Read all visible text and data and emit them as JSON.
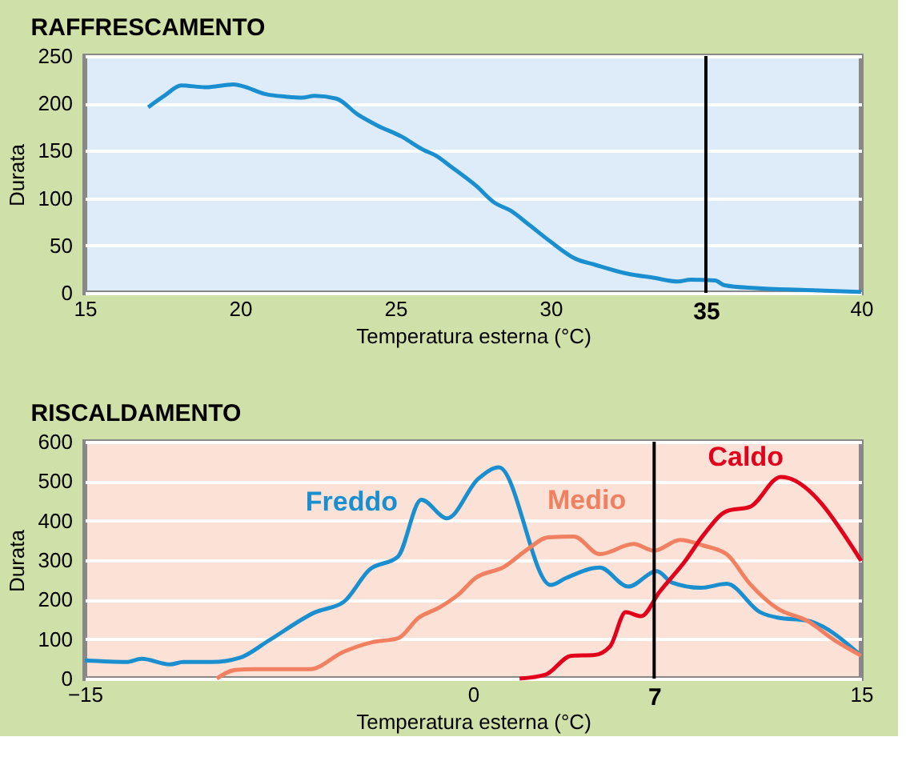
{
  "chart_data": [
    {
      "type": "line",
      "title": "RAFFRESCAMENTO",
      "xlabel": "Temperatura esterna (°C)",
      "ylabel": "Durata",
      "xlim": [
        15,
        40
      ],
      "xticks": [
        15,
        20,
        25,
        30,
        35,
        40
      ],
      "ylim": [
        0,
        250
      ],
      "yticks": [
        0,
        50,
        100,
        150,
        200,
        250
      ],
      "grid": "y",
      "legend": false,
      "ref_lines": [
        {
          "axis": "x",
          "value": 35,
          "color": "#000000"
        }
      ],
      "series": [
        {
          "color": "#1a8fd0",
          "x": [
            17.04,
            17.6,
            18.1,
            18.9,
            19.8,
            20.1,
            20.8,
            21.5,
            22.0,
            22.4,
            23.1,
            23.8,
            24.4,
            25.2,
            25.9,
            26.3,
            26.8,
            27.6,
            28.2,
            28.7,
            29.3,
            30.0,
            30.8,
            31.4,
            32.5,
            33.3,
            34.1,
            34.5,
            35.3,
            35.6,
            36.6,
            38.2,
            40
          ],
          "values": [
            196,
            209,
            219,
            217,
            220,
            218,
            210,
            207,
            206,
            208,
            205,
            188,
            177,
            165,
            151,
            145,
            133,
            113,
            95,
            87,
            72,
            54,
            36,
            30,
            20,
            16,
            12,
            14,
            13,
            8,
            5,
            3,
            1
          ]
        }
      ]
    },
    {
      "type": "line",
      "title": "RISCALDAMENTO",
      "xlabel": "Temperatura esterna (°C)",
      "ylabel": "Durata",
      "xlim": [
        -15,
        15
      ],
      "xticks": [
        -15,
        0,
        7,
        15
      ],
      "ylim": [
        0,
        600
      ],
      "yticks": [
        0,
        100,
        200,
        300,
        400,
        500,
        600
      ],
      "grid": "y",
      "legend": false,
      "ref_lines": [
        {
          "axis": "x",
          "value": 7,
          "color": "#000000"
        }
      ],
      "series": [
        {
          "name": "Freddo",
          "color": "#1a8fd0",
          "x": [
            -15,
            -13.4,
            -12.8,
            -11.7,
            -11.2,
            -10.1,
            -9.0,
            -7.9,
            -6.1,
            -5.0,
            -4.0,
            -2.9,
            -2.0,
            -1.0,
            0.2,
            1.0,
            3.0,
            3.6,
            4.9,
            6.0,
            7.1,
            7.7,
            8.8,
            9.8,
            11.1,
            11.8,
            12.9,
            15
          ],
          "values": [
            46,
            42,
            50,
            36,
            42,
            42,
            53,
            96,
            168,
            194,
            276,
            309,
            453,
            406,
            506,
            535,
            237,
            255,
            281,
            233,
            272,
            243,
            230,
            240,
            168,
            154,
            147,
            58
          ]
        },
        {
          "name": "Medio",
          "color": "#f08060",
          "x": [
            -9.9,
            -9.2,
            -8.5,
            -6.3,
            -5.0,
            -3.9,
            -2.9,
            -2.1,
            -1.3,
            -0.6,
            0.1,
            1.2,
            2.1,
            2.9,
            3.9,
            4.9,
            6.2,
            7.0,
            8.0,
            8.9,
            9.8,
            10.7,
            11.8,
            12.9,
            14.0,
            15
          ],
          "values": [
            0,
            22,
            24,
            24,
            68,
            92,
            102,
            154,
            180,
            211,
            255,
            283,
            327,
            358,
            360,
            315,
            341,
            324,
            351,
            337,
            315,
            240,
            176,
            147,
            96,
            58
          ]
        },
        {
          "name": "Caldo",
          "color": "#e3001b",
          "x": [
            1.8,
            2.8,
            3.8,
            4.7,
            5.3,
            5.9,
            6.5,
            7.2,
            8.2,
            8.9,
            9.8,
            10.7,
            11.9,
            15
          ],
          "values": [
            0,
            10,
            58,
            60,
            82,
            168,
            158,
            219,
            298,
            363,
            424,
            435,
            511,
            298
          ]
        }
      ]
    }
  ]
}
